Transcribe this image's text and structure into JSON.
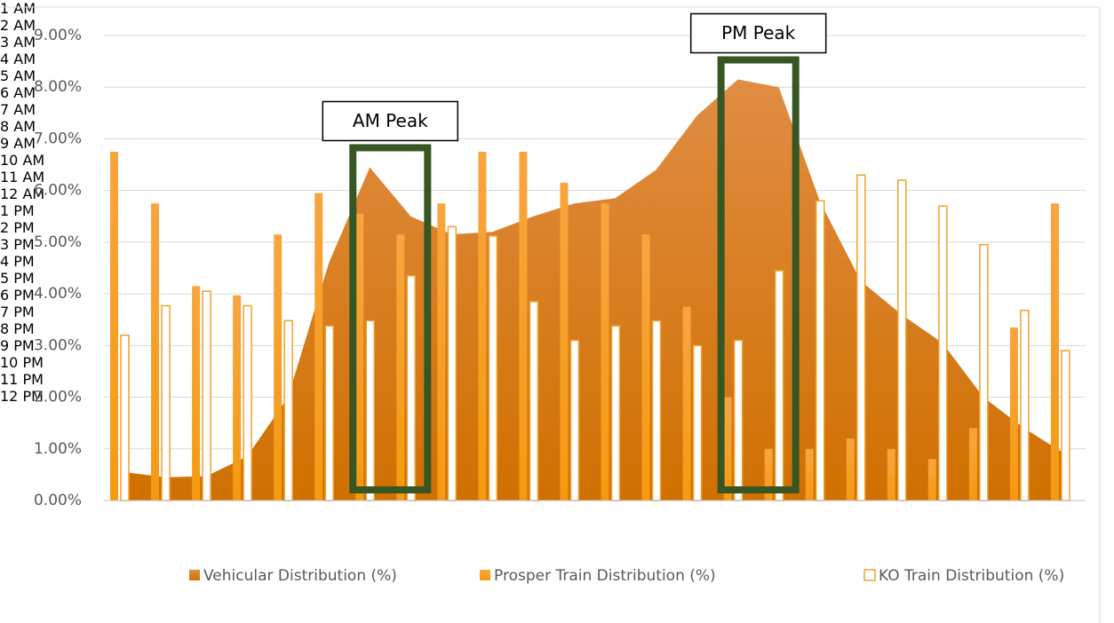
{
  "chart_data": {
    "type": "combo",
    "categories": [
      "1 AM",
      "2 AM",
      "3 AM",
      "4 AM",
      "5 AM",
      "6 AM",
      "7 AM",
      "8 AM",
      "9 AM",
      "10 AM",
      "11 AM",
      "12 AM",
      "1 PM",
      "2 PM",
      "3 PM",
      "4 PM",
      "5 PM",
      "6 PM",
      "7 PM",
      "8 PM",
      "9 PM",
      "10 PM",
      "11 PM",
      "12 PM"
    ],
    "series": [
      {
        "name": "Vehicular Distribution (%)",
        "type": "area",
        "color": "#d9822f",
        "values": [
          0.55,
          0.45,
          0.47,
          0.85,
          2.0,
          4.6,
          6.45,
          5.5,
          5.15,
          5.2,
          5.5,
          5.75,
          5.85,
          6.4,
          7.45,
          8.15,
          8.0,
          5.8,
          4.25,
          3.6,
          3.05,
          2.0,
          1.4,
          0.9
        ]
      },
      {
        "name": "Prosper Train Distribution (%)",
        "type": "bar",
        "color": "#f7a030",
        "values": [
          6.75,
          5.75,
          4.15,
          3.97,
          5.15,
          5.95,
          5.55,
          5.15,
          5.75,
          6.75,
          6.75,
          6.15,
          5.75,
          5.15,
          3.75,
          2.0,
          1.0,
          1.0,
          1.2,
          1.0,
          0.8,
          1.4,
          3.35,
          5.75
        ]
      },
      {
        "name": "KO Train Distribution (%)",
        "type": "bar-outline",
        "color": "#f0a030",
        "values": [
          3.2,
          3.77,
          4.05,
          3.77,
          3.48,
          3.38,
          3.48,
          4.35,
          5.3,
          5.12,
          3.85,
          3.1,
          3.38,
          3.48,
          3.0,
          3.1,
          4.45,
          5.8,
          6.3,
          6.2,
          5.7,
          4.95,
          3.68,
          2.9
        ]
      }
    ],
    "ylim": [
      0,
      9
    ],
    "yticks": [
      {
        "value": 0,
        "label": "0.00%"
      },
      {
        "value": 1,
        "label": "1.00%"
      },
      {
        "value": 2,
        "label": "2.00%"
      },
      {
        "value": 3,
        "label": "3.00%"
      },
      {
        "value": 4,
        "label": "4.00%"
      },
      {
        "value": 5,
        "label": "5.00%"
      },
      {
        "value": 6,
        "label": "6.00%"
      },
      {
        "value": 7,
        "label": "7.00%"
      },
      {
        "value": 8,
        "label": "8.00%"
      },
      {
        "value": 9,
        "label": "9.00%"
      }
    ],
    "grid": true,
    "legend": "bottom",
    "annotations": [
      {
        "text": "AM Peak",
        "from": "7 AM",
        "to": "8 AM",
        "color": "#375623"
      },
      {
        "text": "PM Peak",
        "from": "4 PM",
        "to": "5 PM",
        "color": "#375623"
      }
    ]
  }
}
